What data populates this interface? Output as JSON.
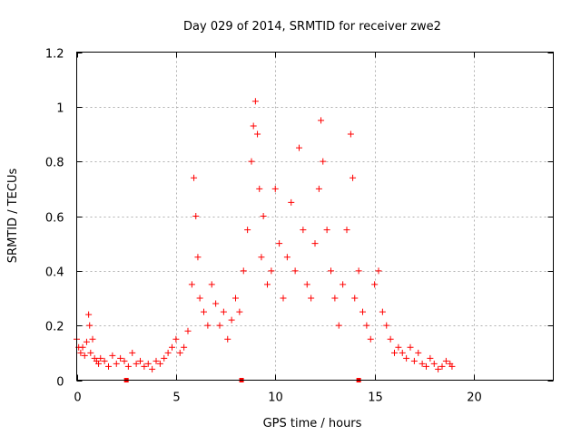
{
  "chart_data": {
    "type": "scatter",
    "title": "Day 029 of 2014, SRMTID for receiver zwe2",
    "xlabel": "GPS time / hours",
    "ylabel": "SRMTID / TECUs",
    "xlim": [
      0,
      24
    ],
    "ylim": [
      0,
      1.2
    ],
    "xticks": [
      0,
      5,
      10,
      15,
      20
    ],
    "yticks": [
      0,
      0.2,
      0.4,
      0.6,
      0.8,
      1,
      1.2
    ],
    "xtick_labels": [
      "0",
      "5",
      "10",
      "15",
      "20"
    ],
    "ytick_labels": [
      "0",
      "0.2",
      "0.4",
      "0.6",
      "0.8",
      "1",
      "1.2"
    ],
    "grid": true,
    "marker": "+",
    "color": "#ff0000",
    "series": [
      {
        "name": "SRMTID",
        "x": [
          0.0,
          0.1,
          0.2,
          0.3,
          0.4,
          0.5,
          0.6,
          0.65,
          0.7,
          0.8,
          0.9,
          1.0,
          1.1,
          1.2,
          1.4,
          1.6,
          1.8,
          2.0,
          2.2,
          2.4,
          2.6,
          2.8,
          3.0,
          3.2,
          3.4,
          3.6,
          3.8,
          4.0,
          4.2,
          4.4,
          4.6,
          4.8,
          5.0,
          5.2,
          5.4,
          5.6,
          5.8,
          5.9,
          6.0,
          6.1,
          6.2,
          6.4,
          6.6,
          6.8,
          7.0,
          7.2,
          7.4,
          7.6,
          7.8,
          8.0,
          8.2,
          8.4,
          8.6,
          8.8,
          8.9,
          9.0,
          9.1,
          9.2,
          9.3,
          9.4,
          9.6,
          9.8,
          10.0,
          10.2,
          10.4,
          10.6,
          10.8,
          11.0,
          11.2,
          11.4,
          11.6,
          11.8,
          12.0,
          12.2,
          12.3,
          12.4,
          12.6,
          12.8,
          13.0,
          13.2,
          13.4,
          13.6,
          13.8,
          13.9,
          14.0,
          14.2,
          14.4,
          14.6,
          14.8,
          15.0,
          15.2,
          15.4,
          15.6,
          15.8,
          16.0,
          16.2,
          16.4,
          16.6,
          16.8,
          17.0,
          17.2,
          17.4,
          17.6,
          17.8,
          18.0,
          18.2,
          18.4,
          18.6,
          18.8,
          18.9
        ],
        "y": [
          0.15,
          0.12,
          0.1,
          0.12,
          0.09,
          0.14,
          0.24,
          0.2,
          0.1,
          0.15,
          0.08,
          0.07,
          0.06,
          0.08,
          0.07,
          0.05,
          0.09,
          0.06,
          0.08,
          0.07,
          0.05,
          0.1,
          0.06,
          0.07,
          0.05,
          0.06,
          0.04,
          0.07,
          0.06,
          0.08,
          0.1,
          0.12,
          0.15,
          0.1,
          0.12,
          0.18,
          0.35,
          0.74,
          0.6,
          0.45,
          0.3,
          0.25,
          0.2,
          0.35,
          0.28,
          0.2,
          0.25,
          0.15,
          0.22,
          0.3,
          0.25,
          0.4,
          0.55,
          0.8,
          0.93,
          1.02,
          0.9,
          0.7,
          0.45,
          0.6,
          0.35,
          0.4,
          0.7,
          0.5,
          0.3,
          0.45,
          0.65,
          0.4,
          0.85,
          0.55,
          0.35,
          0.3,
          0.5,
          0.7,
          0.95,
          0.8,
          0.55,
          0.4,
          0.3,
          0.2,
          0.35,
          0.55,
          0.9,
          0.74,
          0.3,
          0.4,
          0.25,
          0.2,
          0.15,
          0.35,
          0.4,
          0.25,
          0.2,
          0.15,
          0.1,
          0.12,
          0.1,
          0.08,
          0.12,
          0.07,
          0.1,
          0.06,
          0.05,
          0.08,
          0.06,
          0.04,
          0.05,
          0.07,
          0.06,
          0.05
        ]
      }
    ],
    "gap_markers_x": [
      2.5,
      8.3,
      14.2
    ]
  }
}
